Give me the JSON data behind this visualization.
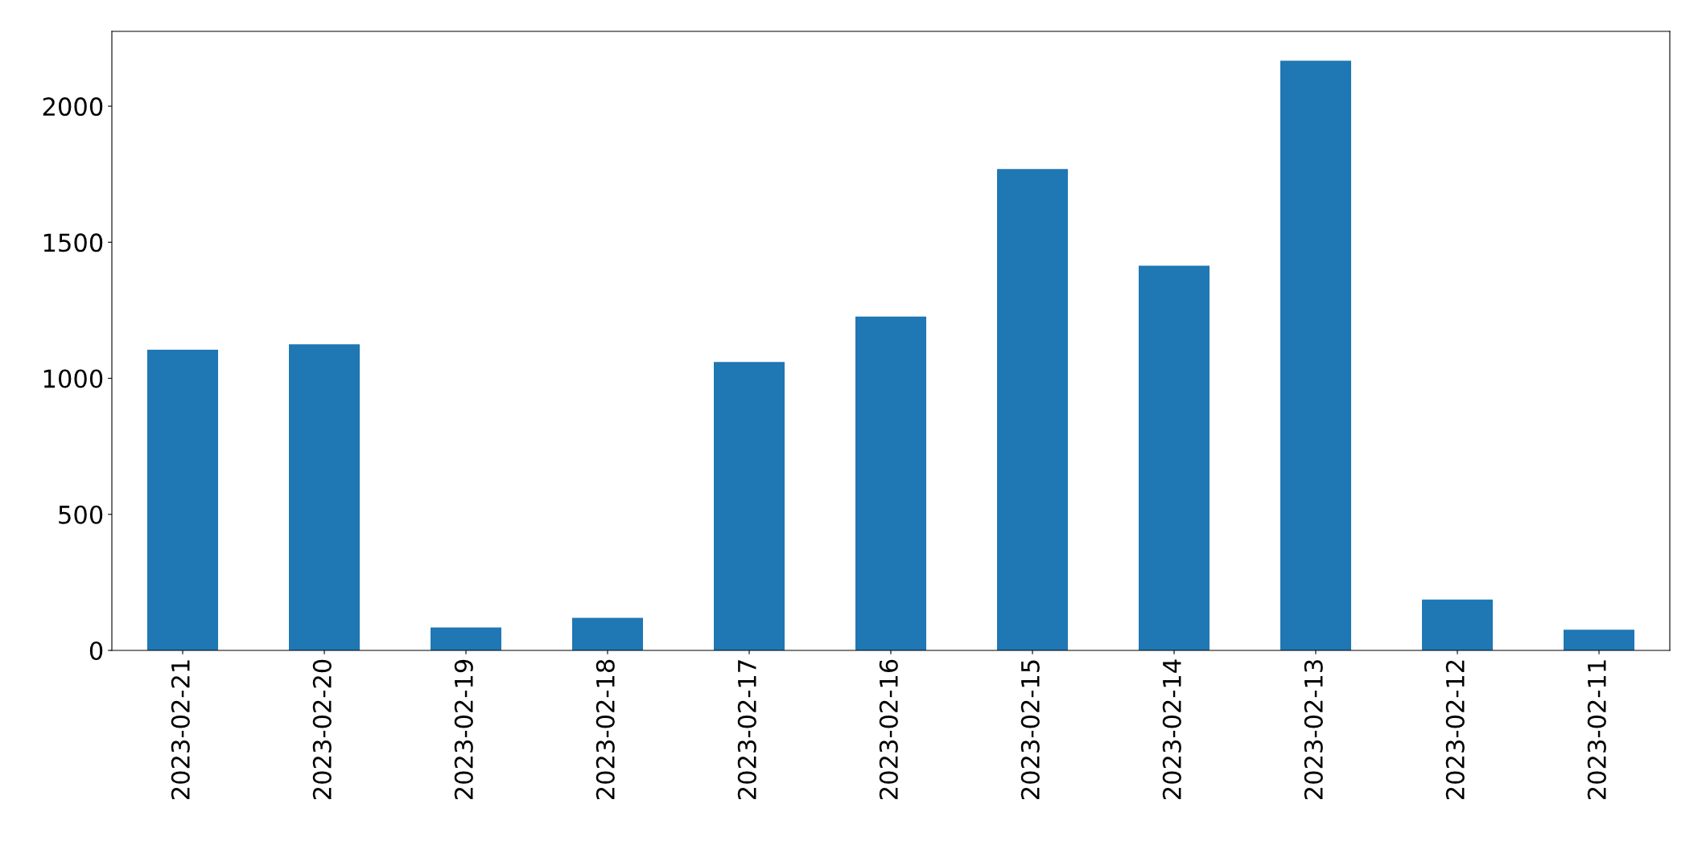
{
  "chart_data": {
    "type": "bar",
    "categories": [
      "2023-02-21",
      "2023-02-20",
      "2023-02-19",
      "2023-02-18",
      "2023-02-17",
      "2023-02-16",
      "2023-02-15",
      "2023-02-14",
      "2023-02-13",
      "2023-02-12",
      "2023-02-11"
    ],
    "values": [
      1105,
      1125,
      84,
      120,
      1060,
      1227,
      1769,
      1414,
      2167,
      187,
      76
    ],
    "color": "#1f77b4",
    "ylim": [
      0,
      2275
    ],
    "yticks": [
      0,
      500,
      1000,
      1500,
      2000
    ],
    "grid": false,
    "legend": false
  }
}
